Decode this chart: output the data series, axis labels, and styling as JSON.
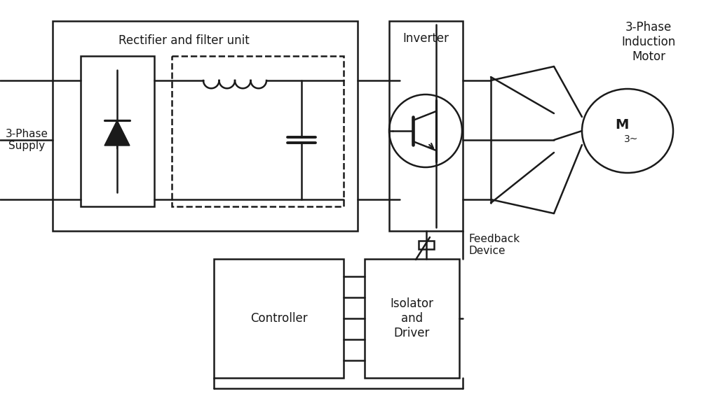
{
  "bg_color": "#ffffff",
  "lc": "#1a1a1a",
  "lw": 1.8,
  "labels": {
    "supply": "3-Phase\nSupply",
    "rectifier": "Rectifier and filter unit",
    "inverter": "Inverter",
    "motor_label": "3-Phase\nInduction\nMotor",
    "controller": "Controller",
    "isolator": "Isolator\nand\nDriver",
    "feedback": "Feedback\nDevice"
  },
  "fontsize": 11
}
